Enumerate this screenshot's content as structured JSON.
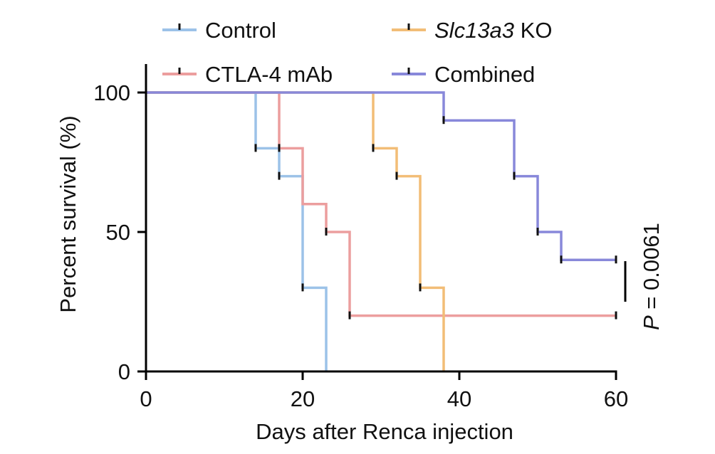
{
  "chart_data": {
    "type": "line",
    "subtype": "kaplan-meier-survival",
    "xlabel": "Days after Renca injection",
    "ylabel": "Percent survival (%)",
    "xlim": [
      0,
      60
    ],
    "ylim": [
      0,
      100
    ],
    "xticks": [
      "0",
      "20",
      "40",
      "60"
    ],
    "yticks": [
      "0",
      "50",
      "100"
    ],
    "legend_position": "top",
    "series": [
      {
        "name": "Control",
        "color": "#9CC2E8",
        "steps": [
          [
            0,
            100
          ],
          [
            14,
            80
          ],
          [
            17,
            70
          ],
          [
            20,
            30
          ],
          [
            23,
            0
          ]
        ],
        "censor": [
          [
            14,
            80
          ],
          [
            17,
            70
          ],
          [
            20,
            30
          ]
        ]
      },
      {
        "name": "CTLA-4 mAb",
        "color": "#EC9E9E",
        "steps": [
          [
            0,
            100
          ],
          [
            17,
            80
          ],
          [
            20,
            60
          ],
          [
            23,
            50
          ],
          [
            26,
            20
          ]
        ],
        "end": 60,
        "censor": [
          [
            17,
            80
          ],
          [
            23,
            50
          ],
          [
            26,
            20
          ],
          [
            60,
            20
          ]
        ]
      },
      {
        "name": "Slc13a3 KO",
        "name_italic": "Slc13a3",
        "name_rest": " KO",
        "color": "#F2BD77",
        "steps": [
          [
            0,
            100
          ],
          [
            29,
            80
          ],
          [
            32,
            70
          ],
          [
            35,
            30
          ],
          [
            38,
            0
          ]
        ],
        "censor": [
          [
            29,
            80
          ],
          [
            32,
            70
          ],
          [
            35,
            30
          ]
        ]
      },
      {
        "name": "Combined",
        "color": "#8888DA",
        "steps": [
          [
            0,
            100
          ],
          [
            38,
            90
          ],
          [
            47,
            70
          ],
          [
            50,
            50
          ],
          [
            53,
            40
          ]
        ],
        "end": 60,
        "censor": [
          [
            38,
            90
          ],
          [
            47,
            70
          ],
          [
            50,
            50
          ],
          [
            53,
            40
          ],
          [
            60,
            40
          ]
        ]
      }
    ],
    "annotation": {
      "italic": "P",
      "text": " = 0.0061",
      "between": [
        "Combined",
        "CTLA-4 mAb"
      ]
    }
  }
}
